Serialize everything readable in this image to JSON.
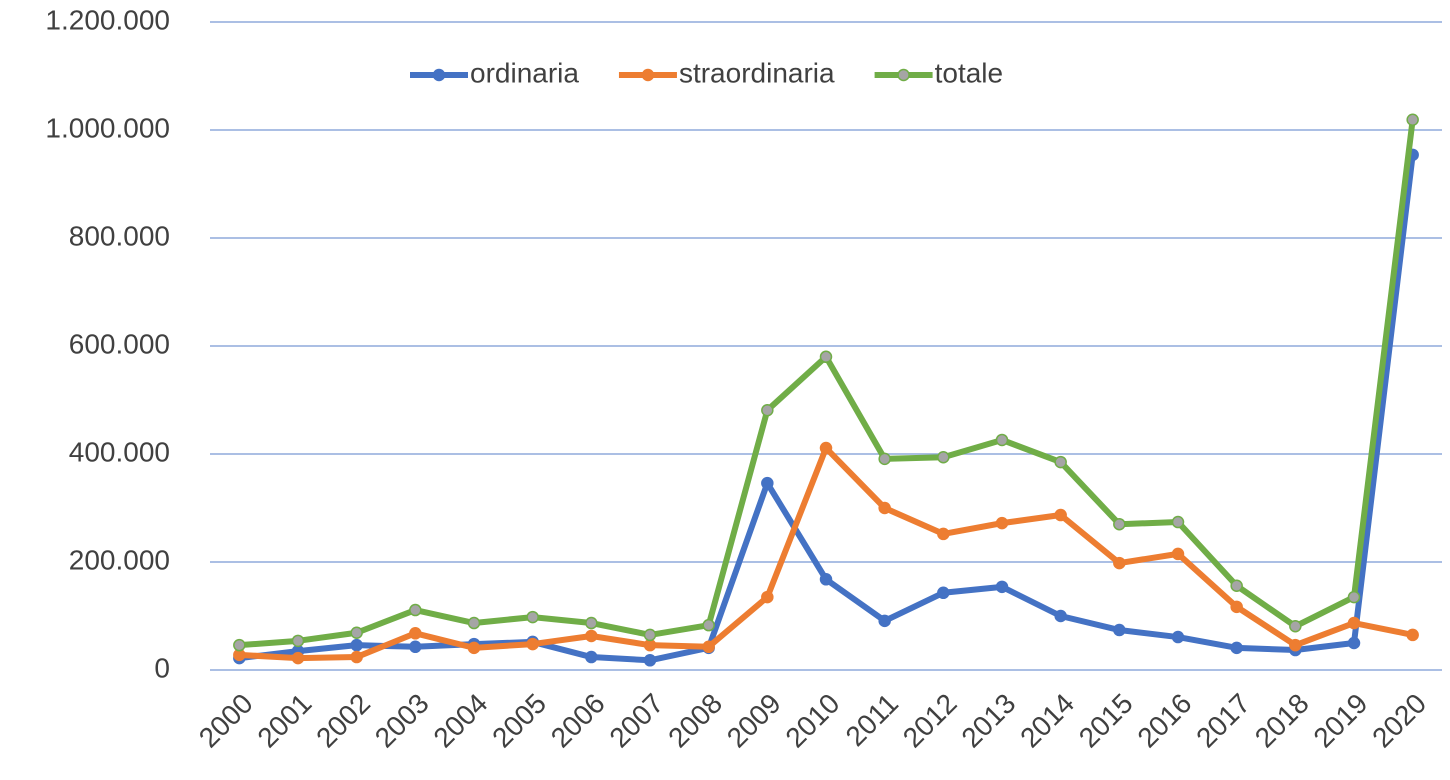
{
  "chart_data": {
    "type": "line",
    "categories": [
      "2000",
      "2001",
      "2002",
      "2003",
      "2004",
      "2005",
      "2006",
      "2007",
      "2008",
      "2009",
      "2010",
      "2011",
      "2012",
      "2013",
      "2014",
      "2015",
      "2016",
      "2017",
      "2018",
      "2019",
      "2020"
    ],
    "series": [
      {
        "name": "ordinaria",
        "color": "#4472c4",
        "values": [
          22000,
          35000,
          46000,
          43000,
          48000,
          52000,
          24000,
          18000,
          41000,
          346000,
          168000,
          91000,
          143000,
          154000,
          100000,
          74000,
          61000,
          41000,
          37000,
          50000,
          954000
        ]
      },
      {
        "name": "straordinaria",
        "color": "#ed7d31",
        "values": [
          28000,
          22000,
          24000,
          68000,
          41000,
          48000,
          63000,
          46000,
          43000,
          135000,
          411000,
          300000,
          252000,
          272000,
          287000,
          198000,
          215000,
          117000,
          46000,
          87000,
          65000
        ]
      },
      {
        "name": "totale",
        "color": "#70ad47",
        "marker_color": "#a5a5a5",
        "values": [
          46000,
          54000,
          69000,
          111000,
          87000,
          98000,
          87000,
          65000,
          83000,
          481000,
          580000,
          391000,
          394000,
          426000,
          385000,
          270000,
          274000,
          156000,
          81000,
          135000,
          1019000
        ]
      }
    ],
    "ylim": [
      0,
      1200000
    ],
    "yticks": [
      0,
      {
        "value": 200000,
        "label": "200.000"
      },
      {
        "value": 400000,
        "label": "400.000"
      },
      {
        "value": 600000,
        "label": "600.000"
      },
      {
        "value": 800000,
        "label": "800.000"
      },
      {
        "value": 1000000,
        "label": "1.000.000"
      },
      {
        "value": 1200000,
        "label": "1.200.000"
      }
    ],
    "grid": true,
    "legend": "top"
  }
}
